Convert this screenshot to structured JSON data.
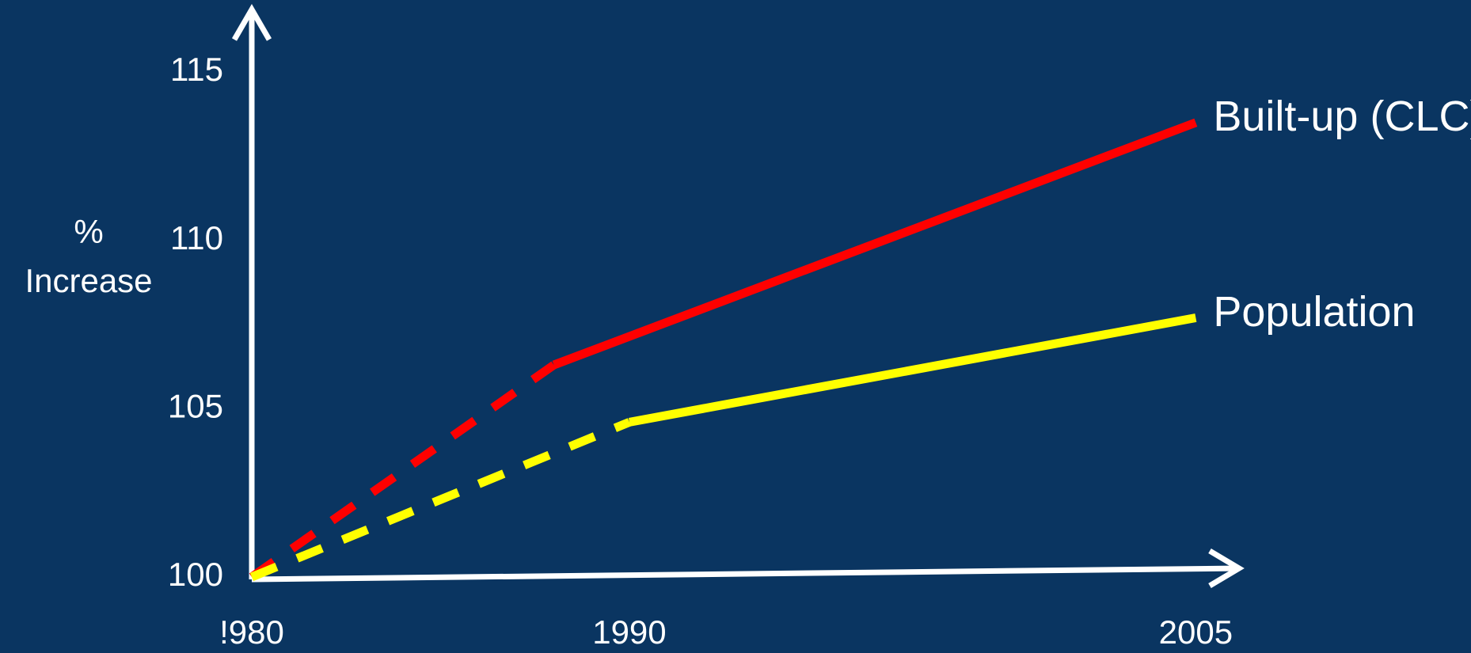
{
  "chart_data": {
    "type": "line",
    "ylabel_lines": [
      "%",
      "Increase"
    ],
    "xlim": [
      1980,
      2006.25
    ],
    "xticks": [
      {
        "value": 1980,
        "label": "!980"
      },
      1990,
      2005
    ],
    "ylim": [
      100,
      117
    ],
    "yticks": [
      100,
      105,
      110,
      115
    ],
    "grid": false,
    "series": [
      {
        "name": "Built-up (CLC)",
        "color": "#ff0000",
        "x": [
          1980,
          1988,
          2005
        ],
        "values": [
          100,
          106.3,
          113.5
        ],
        "segment_styles": [
          "dashed",
          "solid"
        ]
      },
      {
        "name": "Population",
        "color": "#ffff00",
        "x": [
          1980,
          1990,
          2005
        ],
        "values": [
          100,
          104.6,
          107.7
        ],
        "segment_styles": [
          "dashed",
          "solid"
        ]
      }
    ]
  }
}
